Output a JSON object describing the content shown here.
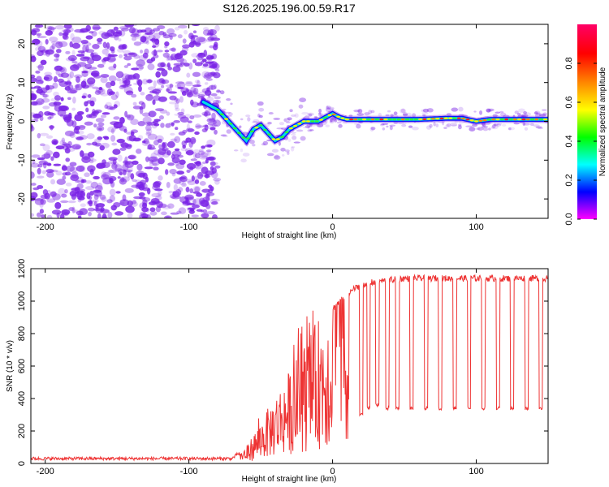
{
  "title": "S126.2025.196.00.59.R17",
  "colors": {
    "scatter": "#7a22e6",
    "line": "#ee3333",
    "colorbar": [
      "#ff00ff",
      "#0000ff",
      "#00ffff",
      "#00ff00",
      "#ffff00",
      "#ff8800",
      "#ff0000",
      "#ff0066"
    ]
  },
  "chart_data": [
    {
      "type": "heatmap",
      "xlabel": "Height of straight line (km)",
      "ylabel": "Frequency (Hz)",
      "xlim": [
        -210,
        150
      ],
      "ylim": [
        -25,
        25
      ],
      "xticks": [
        -200,
        -100,
        0,
        100
      ],
      "xtick_labels": [
        "-200",
        "-100",
        "0",
        "100"
      ],
      "yticks": [
        -20,
        -10,
        0,
        10,
        20
      ],
      "ytick_labels": [
        "-20",
        "-10",
        "0",
        "10",
        "20"
      ],
      "colorbar": {
        "label": "Normalized spectral amplitude",
        "range": [
          0,
          1
        ],
        "ticks": [
          0.0,
          0.2,
          0.4,
          0.6,
          0.8
        ],
        "tick_labels": [
          "0.0",
          "0.2",
          "0.4",
          "0.6",
          "0.8"
        ]
      },
      "ridge": {
        "x": [
          -90,
          -85,
          -80,
          -75,
          -70,
          -65,
          -60,
          -55,
          -50,
          -45,
          -40,
          -35,
          -30,
          -25,
          -20,
          -15,
          -10,
          -5,
          0,
          5,
          10,
          20,
          40,
          60,
          80,
          90,
          100,
          110,
          120,
          130,
          140,
          150
        ],
        "y": [
          5,
          4,
          3,
          1,
          -1,
          -3,
          -5,
          -2,
          -1,
          -3,
          -5,
          -4,
          -2,
          -1,
          0,
          0,
          0,
          1,
          2,
          1,
          0.5,
          0.5,
          0.5,
          0.5,
          0.8,
          0.8,
          0,
          0.5,
          0.5,
          0.5,
          0.5,
          0.5
        ]
      }
    },
    {
      "type": "line",
      "xlabel": "Height of straight line (km)",
      "ylabel": "SNR (10 * v/v)",
      "xlim": [
        -210,
        150
      ],
      "ylim": [
        0,
        1200
      ],
      "xticks": [
        -200,
        -100,
        0,
        100
      ],
      "xtick_labels": [
        "-200",
        "-100",
        "0",
        "100"
      ],
      "yticks": [
        0,
        200,
        400,
        600,
        800,
        1000,
        1200
      ],
      "ytick_labels": [
        "0",
        "200",
        "400",
        "600",
        "800",
        "1000",
        "1200"
      ],
      "series": [
        {
          "envelope_x": [
            -210,
            -70,
            -60,
            -50,
            -40,
            -30,
            -20,
            -10,
            0,
            10,
            20,
            30,
            40,
            50,
            60,
            80,
            100,
            120,
            150
          ],
          "envelope_y": [
            30,
            30,
            100,
            250,
            400,
            550,
            700,
            850,
            950,
            1050,
            1100,
            1120,
            1130,
            1140,
            1140,
            1140,
            1140,
            1140,
            1140
          ],
          "dropout_x": [
            10,
            20,
            25,
            31,
            38,
            45,
            55,
            65,
            75,
            85,
            95,
            105,
            115,
            125,
            135,
            145
          ],
          "dropout_y": [
            150,
            300,
            340,
            360,
            340,
            340,
            340,
            340,
            340,
            340,
            340,
            340,
            340,
            340,
            340,
            340
          ]
        }
      ]
    }
  ]
}
